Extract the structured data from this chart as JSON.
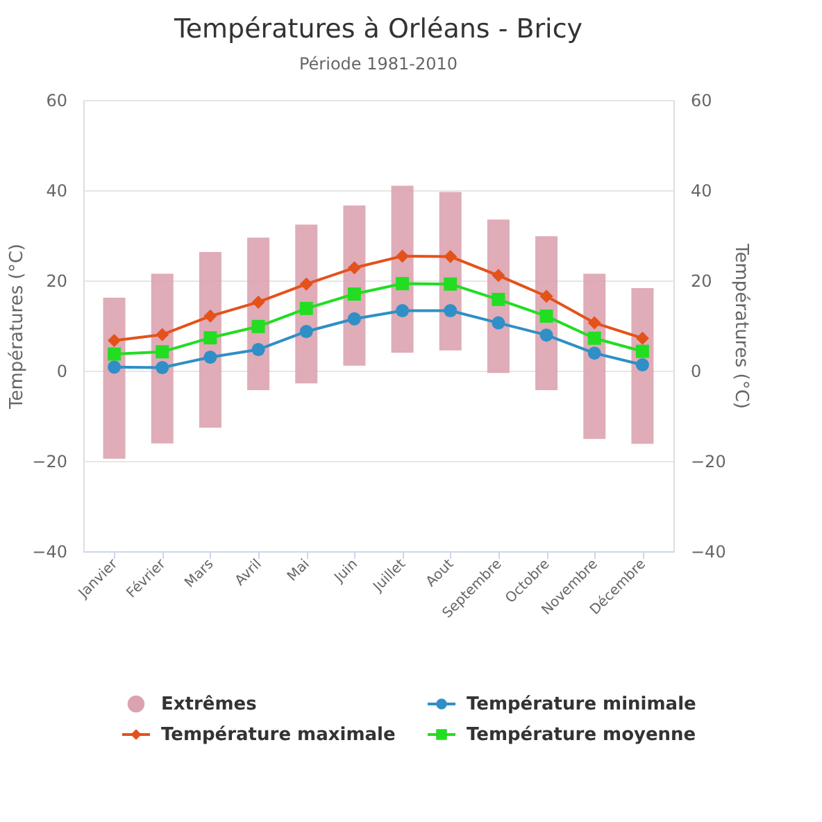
{
  "chart_data": {
    "type": "line",
    "title": "Températures à Orléans - Bricy",
    "subtitle": "Période 1981-2010",
    "ylabel": "Températures (°C)",
    "y2label": "Températures (°C)",
    "categories": [
      "Janvier",
      "Février",
      "Mars",
      "Avril",
      "Mai",
      "Juin",
      "Juillet",
      "Aout",
      "Septembre",
      "Octobre",
      "Novembre",
      "Décembre"
    ],
    "ylim": [
      -40,
      60
    ],
    "yticks": [
      -40,
      -20,
      0,
      20,
      40,
      60
    ],
    "y2lim": [
      -40,
      60
    ],
    "y2ticks": [
      -40,
      -20,
      0,
      20,
      40,
      60
    ],
    "grid": "y",
    "legend": "bottom",
    "line_style": "solid",
    "series": [
      {
        "name": "Extrêmes",
        "type": "bar",
        "color": "#dba3b0",
        "base": [
          -19.5,
          -16.1,
          -12.6,
          -4.3,
          -2.8,
          1.1,
          4.0,
          4.5,
          -0.5,
          -4.3,
          -15.1,
          -16.2
        ],
        "values": [
          35.7,
          37.6,
          38.9,
          33.8,
          35.2,
          35.5,
          37.0,
          35.1,
          34.0,
          34.1,
          36.6,
          34.5
        ]
      },
      {
        "name": "Température minimale",
        "marker": "circle",
        "color": "#2f8fc6",
        "values": [
          0.8,
          0.7,
          3.0,
          4.7,
          8.7,
          11.5,
          13.3,
          13.3,
          10.6,
          7.9,
          3.9,
          1.3
        ]
      },
      {
        "name": "Température maximale",
        "marker": "diamond",
        "color": "#e4521b",
        "values": [
          6.7,
          8.0,
          12.1,
          15.2,
          19.2,
          22.8,
          25.4,
          25.3,
          21.1,
          16.5,
          10.6,
          7.2
        ]
      },
      {
        "name": "Température moyenne",
        "marker": "square",
        "color": "#22dd22",
        "values": [
          3.7,
          4.2,
          7.3,
          9.8,
          13.8,
          17.0,
          19.3,
          19.2,
          15.8,
          12.1,
          7.2,
          4.3
        ]
      }
    ]
  }
}
